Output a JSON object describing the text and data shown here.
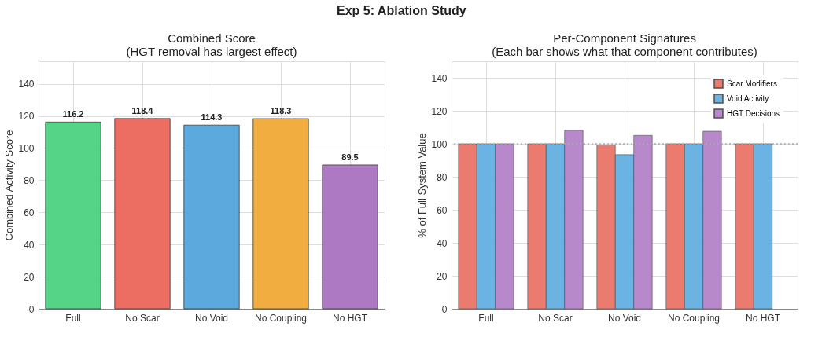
{
  "chart_data": [
    {
      "type": "bar",
      "title": "Combined Score\n(HGT removal has largest effect)",
      "ylabel": "Combined Activity Score",
      "annotations": [
        "Exp 5: Ablation Study"
      ],
      "categories": [
        "Full",
        "No Scar",
        "No Void",
        "No Coupling",
        "No HGT"
      ],
      "values": [
        116.2,
        118.4,
        114.3,
        118.3,
        89.5
      ],
      "colors": [
        "#4cd181",
        "#eb6659",
        "#54a5dd",
        "#f1a935",
        "#a872bf"
      ],
      "ylim": [
        0,
        154
      ],
      "yticks": [
        0,
        20,
        40,
        60,
        80,
        100,
        120,
        140
      ],
      "grid": true,
      "data_labels": true
    },
    {
      "type": "bar",
      "title": "Per-Component Signatures\n(Each bar shows what that component contributes)",
      "ylabel": "% of Full System Value",
      "categories": [
        "Full",
        "No Scar",
        "No Void",
        "No Coupling",
        "No HGT"
      ],
      "series": [
        {
          "name": "Scar Modifiers",
          "color": "#ec7468",
          "values": [
            100,
            100,
            99.3,
            100,
            100
          ]
        },
        {
          "name": "Void Activity",
          "color": "#63afe1",
          "values": [
            100,
            100,
            93.4,
            100,
            100
          ]
        },
        {
          "name": "HGT Decisions",
          "color": "#b483c8",
          "values": [
            100,
            108.2,
            105.1,
            107.6,
            null
          ]
        }
      ],
      "ylim": [
        0,
        150
      ],
      "yticks": [
        0,
        20,
        40,
        60,
        80,
        100,
        120,
        140
      ],
      "grid": true,
      "legend": "top right",
      "ref_lines": [
        {
          "axis": "y",
          "value": 100,
          "color": "#aaaaaa",
          "line_style": "dotted"
        }
      ]
    }
  ]
}
